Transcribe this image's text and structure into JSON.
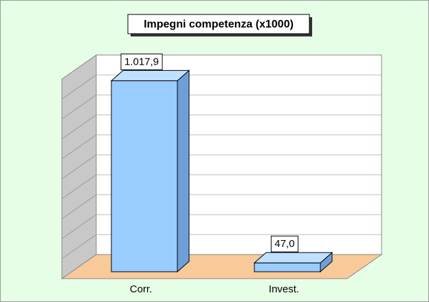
{
  "chart_data": {
    "type": "bar3d",
    "title": "Impegni competenza (x1000)",
    "categories": [
      "Corr.",
      "Invest."
    ],
    "values": [
      1017.9,
      47.0
    ],
    "value_labels": [
      "1.017,9",
      "47,0"
    ],
    "color": "#99ccff",
    "ylim": [
      0,
      1100
    ],
    "grid": true
  }
}
